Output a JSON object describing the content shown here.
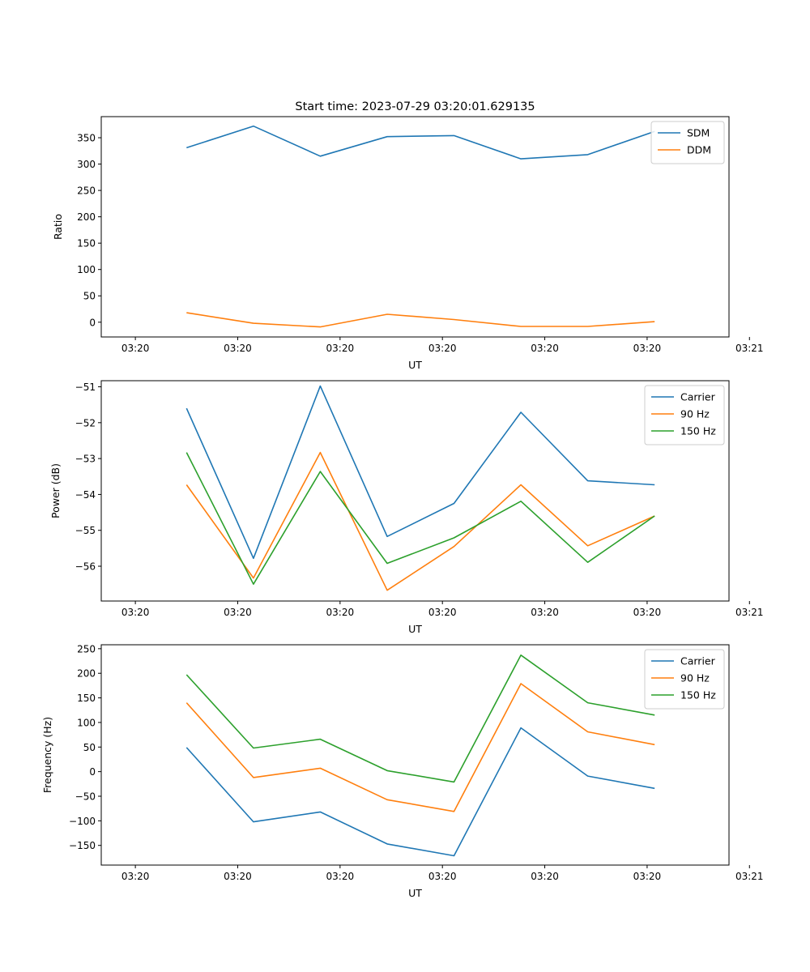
{
  "figure": {
    "title": "Start time: 2023-07-29 03:20:01.629135"
  },
  "chart_data": [
    {
      "type": "line",
      "title": "Start time: 2023-07-29 03:20:01.629135",
      "xlabel": "UT",
      "ylabel": "Ratio",
      "xlim": [
        -0.5,
        8.7
      ],
      "x_ticks": [
        {
          "value": 0,
          "label": "03:20"
        },
        {
          "value": 1.5,
          "label": "03:20"
        },
        {
          "value": 3,
          "label": "03:20"
        },
        {
          "value": 4.5,
          "label": "03:20"
        },
        {
          "value": 6,
          "label": "03:20"
        },
        {
          "value": 7.5,
          "label": "03:20"
        },
        {
          "value": 9,
          "label": "03:21"
        }
      ],
      "ylim": [
        -28,
        390
      ],
      "y_ticks": [
        0,
        50,
        100,
        150,
        200,
        250,
        300,
        350
      ],
      "x": [
        0.75,
        1.73,
        2.71,
        3.69,
        4.67,
        5.65,
        6.63,
        7.61
      ],
      "legend_position": "top-right",
      "series": [
        {
          "name": "SDM",
          "color": "#1f77b4",
          "values": [
            331,
            372,
            315,
            352,
            354,
            310,
            318,
            362
          ]
        },
        {
          "name": "DDM",
          "color": "#ff7f0e",
          "values": [
            18,
            -2,
            -9,
            15,
            5,
            -8,
            -8,
            1
          ]
        }
      ]
    },
    {
      "type": "line",
      "title": "",
      "xlabel": "UT",
      "ylabel": "Power (dB)",
      "xlim": [
        -0.5,
        8.7
      ],
      "x_ticks": [
        {
          "value": 0,
          "label": "03:20"
        },
        {
          "value": 1.5,
          "label": "03:20"
        },
        {
          "value": 3,
          "label": "03:20"
        },
        {
          "value": 4.5,
          "label": "03:20"
        },
        {
          "value": 6,
          "label": "03:20"
        },
        {
          "value": 7.5,
          "label": "03:20"
        },
        {
          "value": 9,
          "label": "03:21"
        }
      ],
      "ylim": [
        -56.97,
        -50.83
      ],
      "y_ticks": [
        -56,
        -55,
        -54,
        -53,
        -52,
        -51
      ],
      "x": [
        0.75,
        1.73,
        2.71,
        3.69,
        4.67,
        5.65,
        6.63,
        7.61
      ],
      "legend_position": "top-right",
      "series": [
        {
          "name": "Carrier",
          "color": "#1f77b4",
          "values": [
            -51.6,
            -55.78,
            -50.98,
            -55.17,
            -54.25,
            -51.71,
            -53.62,
            -53.73
          ]
        },
        {
          "name": "90 Hz",
          "color": "#ff7f0e",
          "values": [
            -53.73,
            -56.33,
            -52.83,
            -56.67,
            -55.45,
            -53.73,
            -55.43,
            -54.6
          ]
        },
        {
          "name": "150 Hz",
          "color": "#2ca02c",
          "values": [
            -52.83,
            -56.5,
            -53.36,
            -55.92,
            -55.21,
            -54.19,
            -55.89,
            -54.6
          ]
        }
      ]
    },
    {
      "type": "line",
      "title": "",
      "xlabel": "UT",
      "ylabel": "Frequency (Hz)",
      "xlim": [
        -0.5,
        8.7
      ],
      "x_ticks": [
        {
          "value": 0,
          "label": "03:20"
        },
        {
          "value": 1.5,
          "label": "03:20"
        },
        {
          "value": 3,
          "label": "03:20"
        },
        {
          "value": 4.5,
          "label": "03:20"
        },
        {
          "value": 6,
          "label": "03:20"
        },
        {
          "value": 7.5,
          "label": "03:20"
        },
        {
          "value": 9,
          "label": "03:21"
        }
      ],
      "ylim": [
        -190,
        258
      ],
      "y_ticks": [
        -150,
        -100,
        -50,
        0,
        50,
        100,
        150,
        200,
        250
      ],
      "x": [
        0.75,
        1.73,
        2.71,
        3.69,
        4.67,
        5.65,
        6.63,
        7.61
      ],
      "legend_position": "top-right",
      "series": [
        {
          "name": "Carrier",
          "color": "#1f77b4",
          "values": [
            49,
            -102,
            -82,
            -147,
            -171,
            89,
            -9,
            -34
          ]
        },
        {
          "name": "90 Hz",
          "color": "#ff7f0e",
          "values": [
            140,
            -12,
            7,
            -57,
            -81,
            179,
            81,
            55
          ]
        },
        {
          "name": "150 Hz",
          "color": "#2ca02c",
          "values": [
            197,
            48,
            66,
            2,
            -21,
            237,
            140,
            115
          ]
        }
      ]
    }
  ]
}
